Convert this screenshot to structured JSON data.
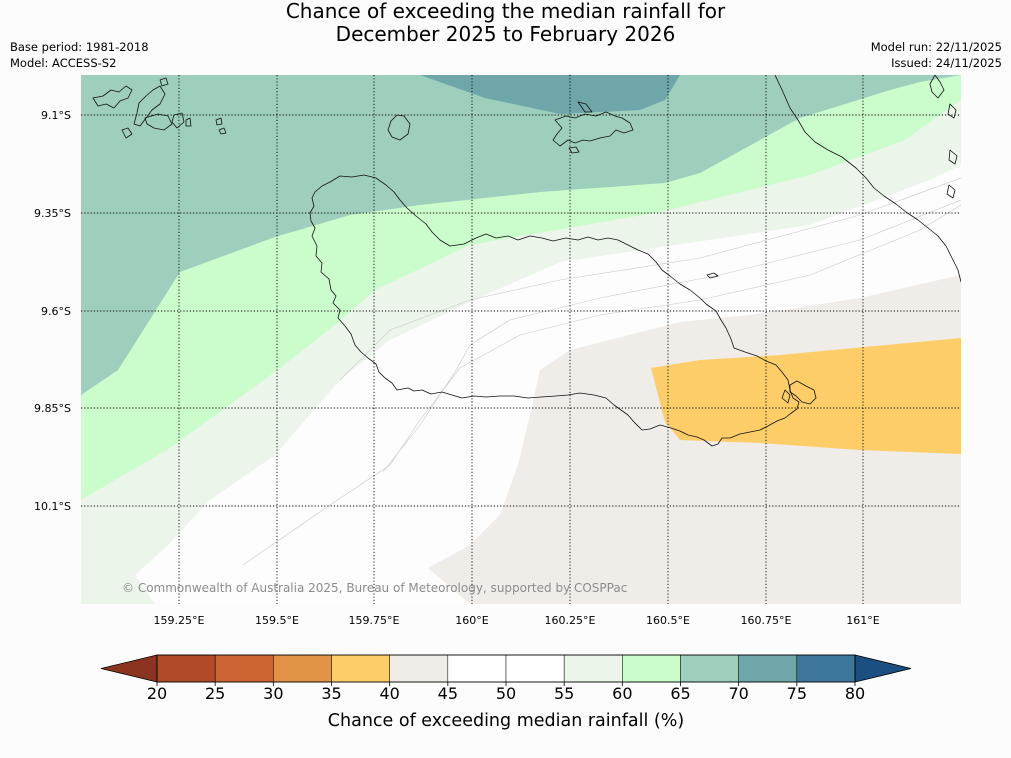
{
  "title": {
    "line1": "Chance of exceeding the median rainfall for",
    "line2": "December 2025 to February 2026"
  },
  "meta_left": {
    "base_period": "Base period: 1981-2018",
    "model": "Model: ACCESS-S2"
  },
  "meta_right": {
    "model_run": "Model run: 22/11/2025",
    "issued": "Issued: 24/11/2025"
  },
  "map": {
    "lat_labels": [
      "9.1°S",
      "9.35°S",
      "9.6°S",
      "9.85°S",
      "10.1°S"
    ],
    "lon_labels": [
      "159.25°E",
      "159.5°E",
      "159.75°E",
      "160°E",
      "160.25°E",
      "160.5°E",
      "160.75°E",
      "161°E"
    ],
    "copyright": "© Commonwealth of Australia 2025, Bureau of Meteorology, supported by COSPPac"
  },
  "colorbar": {
    "ticks": [
      "20",
      "25",
      "30",
      "35",
      "40",
      "45",
      "50",
      "55",
      "60",
      "65",
      "70",
      "75",
      "80"
    ],
    "colors": [
      "#b14a26",
      "#cd6434",
      "#e39346",
      "#fdcd67",
      "#f0ece7",
      "#ffffff",
      "#ffffff",
      "#ebf5ea",
      "#cbfccb",
      "#9dcfbc",
      "#6ea6a9",
      "#3d789a"
    ],
    "low_color": "#8a3420",
    "high_color": "#1b4f82",
    "label": "Chance of exceeding median rainfall (%)"
  }
}
